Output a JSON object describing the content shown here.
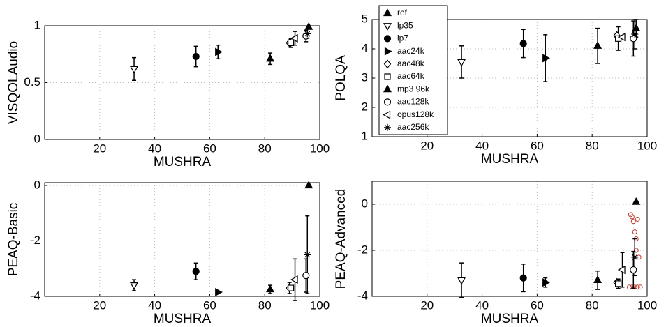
{
  "conditions": [
    {
      "name": "ref",
      "marker": "tri-up-filled",
      "mushra": 96
    },
    {
      "name": "lp35",
      "marker": "tri-down-open",
      "mushra": 32.5
    },
    {
      "name": "lp7",
      "marker": "circle-filled",
      "mushra": 55
    },
    {
      "name": "aac24k",
      "marker": "tri-right-filled",
      "mushra": 63
    },
    {
      "name": "aac48k",
      "marker": "diamond-open",
      "mushra": 89
    },
    {
      "name": "aac64k",
      "marker": "square-open",
      "mushra": 89.5
    },
    {
      "name": "mp3 96k",
      "marker": "tri-up-filled",
      "mushra": 82
    },
    {
      "name": "aac128k",
      "marker": "circle-open",
      "mushra": 95
    },
    {
      "name": "opus128k",
      "marker": "tri-left-open",
      "mushra": 91
    },
    {
      "name": "aac256k",
      "marker": "star",
      "mushra": 95.5
    }
  ],
  "chart_data": [
    {
      "type": "scatter",
      "xlabel": "MUSHRA",
      "ylabel": "VISQOLAudio",
      "xlim": [
        0,
        100
      ],
      "xticks": [
        20,
        40,
        60,
        80,
        100
      ],
      "ylim": [
        0,
        1
      ],
      "yticks": [
        0,
        0.5,
        1
      ],
      "grid": true,
      "color": "#000000",
      "values": [
        0.99,
        0.62,
        0.73,
        0.77,
        0.85,
        0.85,
        0.71,
        0.91,
        0.89,
        0.93
      ],
      "errors": [
        null,
        0.1,
        0.09,
        0.06,
        null,
        0.04,
        0.05,
        0.05,
        0.06,
        0.04
      ]
    },
    {
      "type": "scatter",
      "xlabel": "MUSHRA",
      "ylabel": "POLQA",
      "xlim": [
        0,
        100
      ],
      "xticks": [
        20,
        40,
        60,
        80,
        100
      ],
      "ylim": [
        1,
        5
      ],
      "yticks": [
        1,
        2,
        3,
        4,
        5
      ],
      "grid": true,
      "color": "#000000",
      "legend": "upper left",
      "values": [
        4.7,
        3.55,
        4.18,
        3.68,
        4.45,
        4.35,
        4.1,
        4.35,
        4.4,
        4.5
      ],
      "errors": [
        0.3,
        0.55,
        0.48,
        0.8,
        null,
        0.4,
        0.6,
        0.6,
        null,
        0.5
      ]
    },
    {
      "type": "scatter",
      "xlabel": "MUSHRA",
      "ylabel": "PEAQ-Basic",
      "xlim": [
        0,
        100
      ],
      "xticks": [
        20,
        40,
        60,
        80,
        100
      ],
      "ylim": [
        -4,
        0.1
      ],
      "yticks": [
        -4,
        -2,
        0
      ],
      "grid": true,
      "color": "#000000",
      "values": [
        0,
        -3.6,
        -3.1,
        -3.85,
        -3.7,
        -3.7,
        -3.75,
        -3.25,
        -3.4,
        -2.5
      ],
      "errors": [
        null,
        0.2,
        0.3,
        null,
        0.2,
        null,
        0.15,
        0.6,
        0.75,
        1.4
      ]
    },
    {
      "type": "scatter",
      "xlabel": "MUSHRA",
      "ylabel": "PEAQ-Advanced",
      "xlim": [
        0,
        100
      ],
      "xticks": [
        20,
        40,
        60,
        80,
        100
      ],
      "ylim": [
        -4,
        1
      ],
      "yticks": [
        -4,
        -2,
        0
      ],
      "grid": true,
      "color": "#000000",
      "values": [
        0.1,
        -3.3,
        -3.2,
        -3.4,
        -3.4,
        -3.45,
        -3.3,
        -2.85,
        -2.85,
        -2.3
      ],
      "errors": [
        null,
        0.75,
        0.6,
        0.2,
        null,
        0.2,
        0.4,
        0.8,
        0.75,
        0.8
      ],
      "points": {
        "color": "#c0392b",
        "x": [
          94,
          94.5,
          95,
          96.5,
          95.5,
          96,
          96,
          97,
          93.5,
          94.5,
          95.5,
          96.5,
          97.5
        ],
        "y": [
          -0.45,
          -0.55,
          -0.75,
          -0.65,
          -1.2,
          -1.5,
          -2.0,
          -2.3,
          -3.6,
          -3.6,
          -3.6,
          -3.6,
          -3.6
        ]
      }
    }
  ]
}
